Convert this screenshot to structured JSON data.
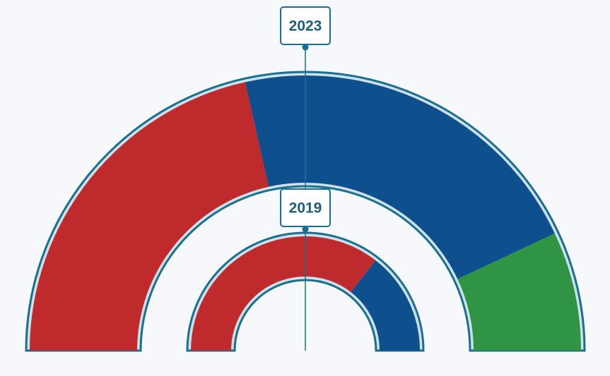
{
  "chart_data": [
    {
      "type": "pie",
      "title": "2023",
      "values": [
        43,
        43,
        14
      ],
      "colors": [
        "#bf2a2c",
        "#0e4f8e",
        "#2f9443"
      ]
    },
    {
      "type": "pie",
      "title": "2019",
      "values": [
        71,
        29
      ],
      "colors": [
        "#bf2a2c",
        "#0e4f8e"
      ]
    }
  ]
}
